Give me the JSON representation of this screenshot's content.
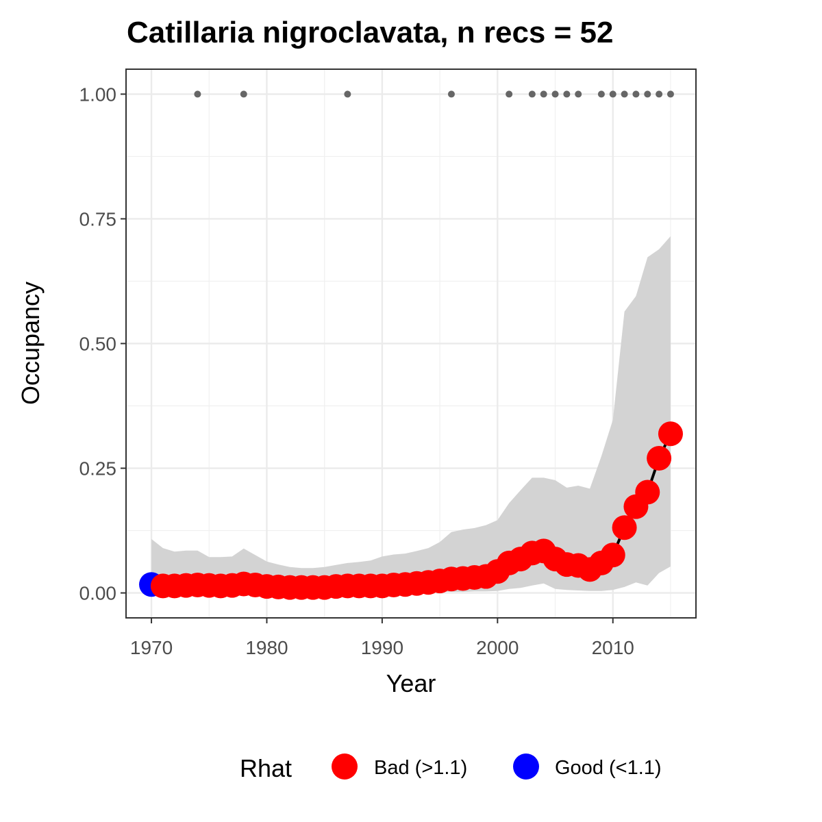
{
  "chart_data": {
    "type": "scatter",
    "title": "Catillaria nigroclavata, n recs = 52",
    "xlabel": "Year",
    "ylabel": "Occupancy",
    "xlim": [
      1967.8,
      2017.2
    ],
    "ylim": [
      -0.05,
      1.05
    ],
    "x_ticks": [
      1970,
      1980,
      1990,
      2000,
      2010
    ],
    "y_ticks": [
      0,
      0.25,
      0.5,
      0.75,
      1
    ],
    "y_tick_labels": [
      "0.00",
      "0.25",
      "0.50",
      "0.75",
      "1.00"
    ],
    "grid": true,
    "legend_position": "bottom",
    "legend": {
      "title": "Rhat",
      "entries": [
        {
          "label": "Bad (>1.1)",
          "color": "#ff0000"
        },
        {
          "label": "Good (<1.1)",
          "color": "#0000ff"
        }
      ]
    },
    "colors": {
      "bad": "#ff0000",
      "good": "#0000ff",
      "band": "#d3d3d3",
      "line": "#000000",
      "record": "#666666"
    },
    "years": [
      1970,
      1971,
      1972,
      1973,
      1974,
      1975,
      1976,
      1977,
      1978,
      1979,
      1980,
      1981,
      1982,
      1983,
      1984,
      1985,
      1986,
      1987,
      1988,
      1989,
      1990,
      1991,
      1992,
      1993,
      1994,
      1995,
      1996,
      1997,
      1998,
      1999,
      2000,
      2001,
      2002,
      2003,
      2004,
      2005,
      2006,
      2007,
      2008,
      2009,
      2010,
      2011,
      2012,
      2013,
      2014,
      2015
    ],
    "occupancy": [
      0.017,
      0.014,
      0.014,
      0.015,
      0.016,
      0.015,
      0.014,
      0.015,
      0.018,
      0.016,
      0.013,
      0.012,
      0.011,
      0.011,
      0.011,
      0.011,
      0.013,
      0.014,
      0.014,
      0.014,
      0.014,
      0.016,
      0.017,
      0.019,
      0.021,
      0.024,
      0.028,
      0.029,
      0.031,
      0.033,
      0.043,
      0.06,
      0.068,
      0.08,
      0.084,
      0.068,
      0.057,
      0.055,
      0.047,
      0.06,
      0.076,
      0.131,
      0.173,
      0.202,
      0.27,
      0.319
    ],
    "lower": [
      0.001,
      0.001,
      0.001,
      0.001,
      0.001,
      0.001,
      0.001,
      0.001,
      0.001,
      0.001,
      0.001,
      0.001,
      0.001,
      0.001,
      0.001,
      0.001,
      0.001,
      0.001,
      0.001,
      0.001,
      0.001,
      0.001,
      0.001,
      0.001,
      0.001,
      0.002,
      0.002,
      0.002,
      0.003,
      0.003,
      0.004,
      0.008,
      0.01,
      0.015,
      0.019,
      0.008,
      0.006,
      0.005,
      0.004,
      0.004,
      0.006,
      0.012,
      0.021,
      0.015,
      0.04,
      0.053
    ],
    "upper": [
      0.108,
      0.09,
      0.083,
      0.085,
      0.085,
      0.072,
      0.072,
      0.073,
      0.089,
      0.076,
      0.063,
      0.057,
      0.052,
      0.05,
      0.05,
      0.052,
      0.056,
      0.06,
      0.062,
      0.065,
      0.073,
      0.077,
      0.079,
      0.084,
      0.09,
      0.102,
      0.122,
      0.127,
      0.13,
      0.136,
      0.146,
      0.18,
      0.206,
      0.231,
      0.231,
      0.226,
      0.211,
      0.215,
      0.209,
      0.274,
      0.347,
      0.564,
      0.595,
      0.673,
      0.689,
      0.715
    ],
    "rhat_status": [
      "good",
      "bad",
      "bad",
      "bad",
      "bad",
      "bad",
      "bad",
      "bad",
      "bad",
      "bad",
      "bad",
      "bad",
      "bad",
      "bad",
      "bad",
      "bad",
      "bad",
      "bad",
      "bad",
      "bad",
      "bad",
      "bad",
      "bad",
      "bad",
      "bad",
      "bad",
      "bad",
      "bad",
      "bad",
      "bad",
      "bad",
      "bad",
      "bad",
      "bad",
      "bad",
      "bad",
      "bad",
      "bad",
      "bad",
      "bad",
      "bad",
      "bad",
      "bad",
      "bad",
      "bad",
      "bad"
    ],
    "record_years": [
      1974,
      1978,
      1987,
      1996,
      2001,
      2003,
      2004,
      2005,
      2006,
      2007,
      2009,
      2010,
      2011,
      2012,
      2013,
      2014,
      2015
    ],
    "record_value": 1.0
  }
}
